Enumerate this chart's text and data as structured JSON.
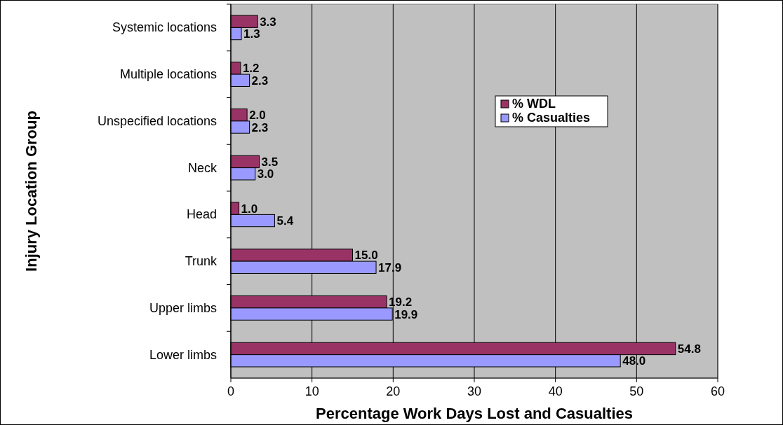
{
  "chart_data": {
    "type": "bar",
    "orientation": "horizontal",
    "xlabel": "Percentage Work Days Lost and Casualties",
    "ylabel": "Injury Location Group",
    "categories": [
      "Systemic locations",
      "Multiple locations",
      "Unspecified locations",
      "Neck",
      "Head",
      "Trunk",
      "Upper limbs",
      "Lower limbs"
    ],
    "series": [
      {
        "name": "% WDL",
        "color": "#993366",
        "values": [
          3.3,
          1.2,
          2,
          3.5,
          1,
          15,
          19.2,
          54.8
        ],
        "value_labels": [
          "3.3",
          "1.2",
          "2.0",
          "3.5",
          "1.0",
          "15.0",
          "19.2",
          "54.8"
        ]
      },
      {
        "name": "% Casualties",
        "color": "#9999ff",
        "values": [
          1.3,
          2.3,
          2.3,
          3,
          5.4,
          17.9,
          19.9,
          48
        ],
        "value_labels": [
          "1.3",
          "2.3",
          "2.3",
          "3.0",
          "5.4",
          "17.9",
          "19.9",
          "48.0"
        ]
      }
    ],
    "xlim": [
      0,
      60
    ],
    "xticks": [
      0,
      10,
      20,
      30,
      40,
      50,
      60
    ],
    "grid": "x",
    "legend": "top right"
  }
}
